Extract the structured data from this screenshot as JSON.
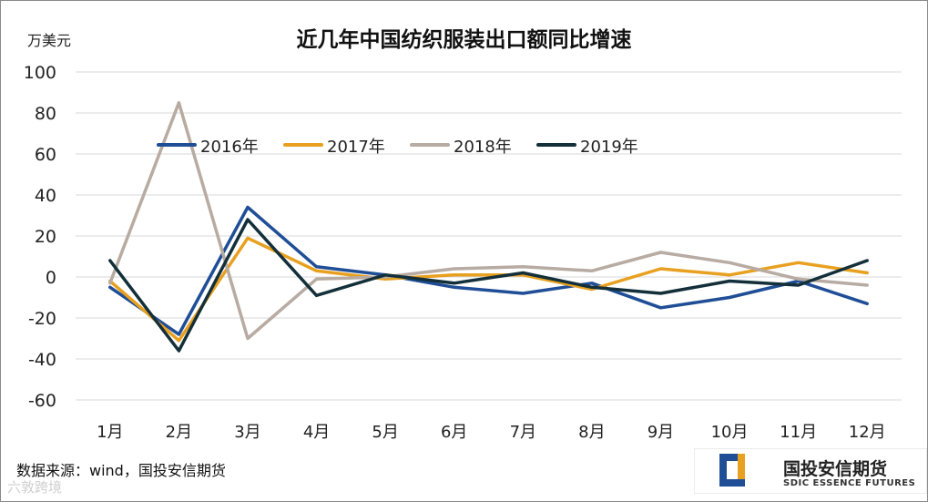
{
  "chart_data": {
    "type": "line",
    "title": "近几年中国纺织服装出口额同比增速",
    "ylabel": "万美元",
    "xlabel": "",
    "ylim": [
      -60,
      100
    ],
    "yticks": [
      -60,
      -40,
      -20,
      0,
      20,
      40,
      60,
      80,
      100
    ],
    "categories": [
      "1月",
      "2月",
      "3月",
      "4月",
      "5月",
      "6月",
      "7月",
      "8月",
      "9月",
      "10月",
      "11月",
      "12月"
    ],
    "grid": true,
    "legend_position": "top-left",
    "series": [
      {
        "name": "2016年",
        "color": "#1f4e96",
        "values": [
          -5,
          -28,
          34,
          5,
          1,
          -5,
          -8,
          -3,
          -15,
          -10,
          -2,
          -13
        ]
      },
      {
        "name": "2017年",
        "color": "#e8a020",
        "values": [
          -2,
          -31,
          19,
          3,
          -1,
          1,
          1,
          -6,
          4,
          1,
          7,
          2
        ]
      },
      {
        "name": "2018年",
        "color": "#b7aba2",
        "values": [
          -3,
          85,
          -30,
          -1,
          0,
          4,
          5,
          3,
          12,
          7,
          -1,
          -4
        ]
      },
      {
        "name": "2019年",
        "color": "#13303a",
        "values": [
          8,
          -36,
          28,
          -9,
          1,
          -3,
          2,
          -5,
          -8,
          -2,
          -4,
          8
        ]
      }
    ]
  },
  "footer": {
    "source": "数据来源：wind，国投安信期货",
    "watermark": "六敦跨境"
  },
  "brand": {
    "name_cn": "国投安信期货",
    "name_en": "SDIC ESSENCE FUTURES",
    "colors": {
      "blue": "#1f4e96",
      "orange": "#e8a020"
    }
  }
}
